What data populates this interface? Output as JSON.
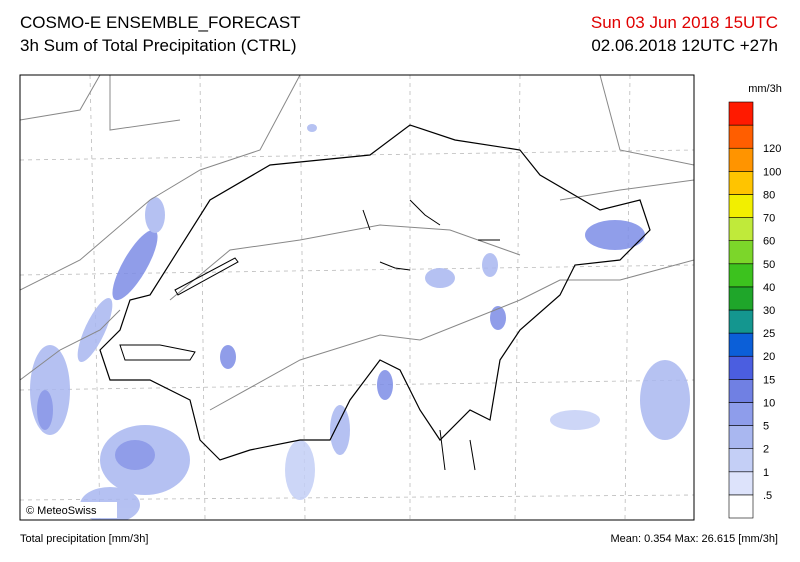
{
  "header": {
    "title": "COSMO-E ENSEMBLE_FORECAST",
    "subtitle": "3h Sum of Total Precipitation (CTRL)",
    "valid_time": "Sun 03 Jun 2018 15UTC",
    "run_time": "02.06.2018 12UTC +27h"
  },
  "map": {
    "credit": "© MeteoSwiss"
  },
  "legend": {
    "unit": "mm/3h",
    "labels": [
      ".5",
      "1",
      "2",
      "5",
      "10",
      "15",
      "20",
      "25",
      "30",
      "40",
      "50",
      "60",
      "70",
      "80",
      "100",
      "120"
    ],
    "colors": [
      "#ffffff",
      "#dde3fb",
      "#c4cff6",
      "#a9b7f0",
      "#8e9deb",
      "#7080e3",
      "#4b5ee0",
      "#0b5fd8",
      "#14968f",
      "#1fa62a",
      "#3cc21e",
      "#7cd62a",
      "#c0ea3a",
      "#f2ef00",
      "#ffc400",
      "#ff9400",
      "#ff5e00",
      "#ff1a00"
    ]
  },
  "footer": {
    "left": "Total precipitation [mm/3h]",
    "right": "Mean:  0.354 Max: 26.615 [mm/3h]"
  }
}
